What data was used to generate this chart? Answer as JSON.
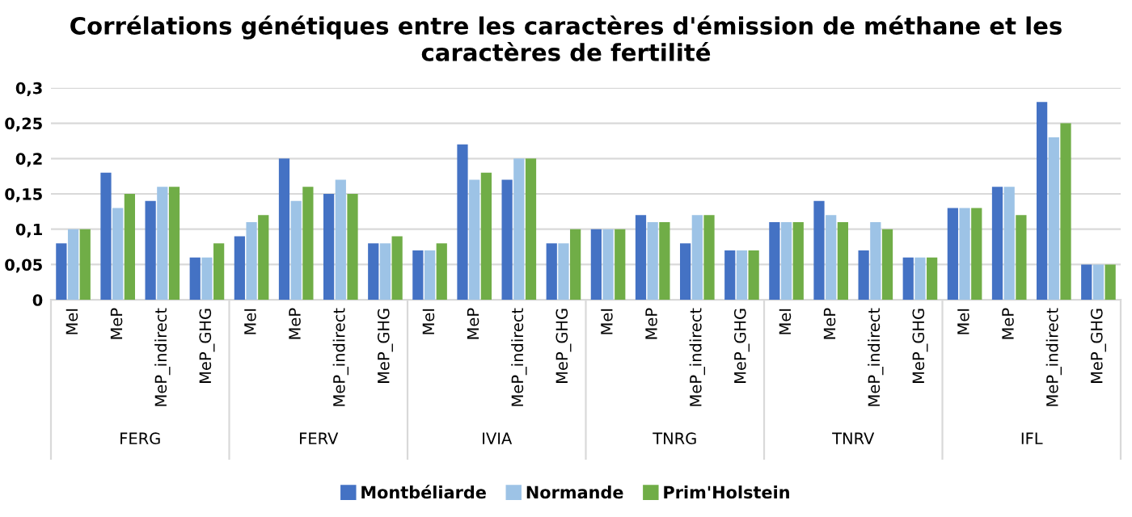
{
  "chart_data": {
    "type": "bar",
    "title": "Corrélations génétiques entre les caractères d'émission de méthane et les caractères de fertilité",
    "categories": [
      "MeI",
      "MeP",
      "MeP_indirect",
      "MeP_GHG",
      "MeI",
      "MeP",
      "MeP_indirect",
      "MeP_GHG",
      "MeI",
      "MeP",
      "MeP_indirect",
      "MeP_GHG",
      "MeI",
      "MeP",
      "MeP_indirect",
      "MeP_GHG",
      "MeI",
      "MeP",
      "MeP_indirect",
      "MeP_GHG",
      "MeI",
      "MeP",
      "MeP_indirect",
      "MeP_GHG"
    ],
    "annotations": [
      "FERG",
      "FERV",
      "IVIA",
      "TNRG",
      "TNRV",
      "IFL"
    ],
    "series": [
      {
        "name": "Montbéliarde",
        "color": "#4472c4",
        "values": [
          0.08,
          0.18,
          0.14,
          0.06,
          0.09,
          0.2,
          0.15,
          0.08,
          0.07,
          0.22,
          0.17,
          0.08,
          0.1,
          0.12,
          0.08,
          0.07,
          0.11,
          0.14,
          0.07,
          0.06,
          0.13,
          0.16,
          0.28,
          0.05
        ]
      },
      {
        "name": "Normande",
        "color": "#9dc3e6",
        "values": [
          0.1,
          0.13,
          0.16,
          0.06,
          0.11,
          0.14,
          0.17,
          0.08,
          0.07,
          0.17,
          0.2,
          0.08,
          0.1,
          0.11,
          0.12,
          0.07,
          0.11,
          0.12,
          0.11,
          0.06,
          0.13,
          0.16,
          0.23,
          0.05
        ]
      },
      {
        "name": "Prim'Holstein",
        "color": "#70ad47",
        "values": [
          0.1,
          0.15,
          0.16,
          0.08,
          0.12,
          0.16,
          0.15,
          0.09,
          0.08,
          0.18,
          0.2,
          0.1,
          0.1,
          0.11,
          0.12,
          0.07,
          0.11,
          0.11,
          0.1,
          0.06,
          0.13,
          0.12,
          0.25,
          0.05
        ]
      }
    ],
    "ylim": [
      0,
      0.3
    ],
    "yticks": [
      {
        "value": 0,
        "label": "0"
      },
      {
        "value": 0.05,
        "label": "0,05"
      },
      {
        "value": 0.1,
        "label": "0,1"
      },
      {
        "value": 0.15,
        "label": "0,15"
      },
      {
        "value": 0.2,
        "label": "0,2"
      },
      {
        "value": 0.25,
        "label": "0,25"
      },
      {
        "value": 0.3,
        "label": "0,3"
      }
    ],
    "grid": "y",
    "legend": "bottom"
  }
}
